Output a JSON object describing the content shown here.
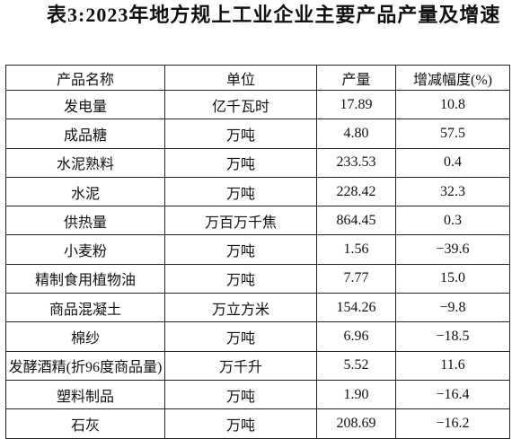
{
  "title": "表3:2023年地方规上工业企业主要产品产量及增速",
  "table": {
    "header": [
      "产品名称",
      "单位",
      "产量",
      "增减幅度(%)"
    ],
    "rows": [
      [
        "发电量",
        "亿千瓦时",
        "17.89",
        "10.8"
      ],
      [
        "成品糖",
        "万吨",
        "4.80",
        "57.5"
      ],
      [
        "水泥熟料",
        "万吨",
        "233.53",
        "0.4"
      ],
      [
        "水泥",
        "万吨",
        "228.42",
        "32.3"
      ],
      [
        "供热量",
        "万百万千焦",
        "864.45",
        "0.3"
      ],
      [
        "小麦粉",
        "万吨",
        "1.56",
        "−39.6"
      ],
      [
        "精制食用植物油",
        "万吨",
        "7.77",
        "15.0"
      ],
      [
        "商品混凝土",
        "万立方米",
        "154.26",
        "−9.8"
      ],
      [
        "棉纱",
        "万吨",
        "6.96",
        "−18.5"
      ],
      [
        "发酵酒精(折96度商品量)",
        "万千升",
        "5.52",
        "11.6"
      ],
      [
        "塑料制品",
        "万吨",
        "1.90",
        "−16.4"
      ],
      [
        "石灰",
        "万吨",
        "208.69",
        "−16.2"
      ]
    ]
  }
}
